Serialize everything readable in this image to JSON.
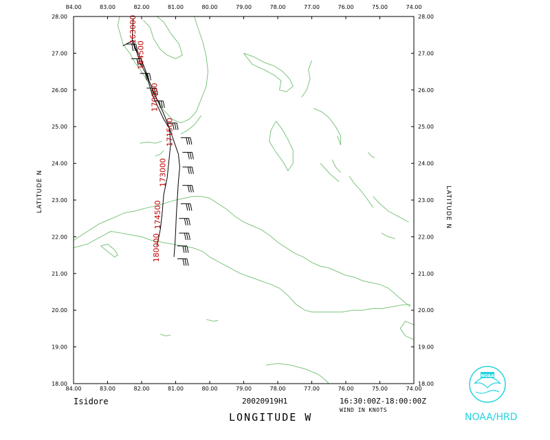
{
  "map": {
    "lon_range": [
      84.0,
      74.0
    ],
    "lat_range": [
      18.0,
      28.0
    ],
    "lon_ticks": [
      "84.00",
      "83.00",
      "82.00",
      "81.00",
      "80.00",
      "79.00",
      "78.00",
      "77.00",
      "76.00",
      "75.00",
      "74.00"
    ],
    "lat_ticks": [
      "18.00",
      "19.00",
      "20.00",
      "21.00",
      "22.00",
      "23.00",
      "24.00",
      "25.00",
      "26.00",
      "27.00",
      "28.00"
    ],
    "left_axis_label": "LATITUDE N",
    "right_axis_label": "LATITUDE N",
    "x_axis_label": "LONGITUDE W",
    "storm_name": "Isidore",
    "flight_id": "20020919H1",
    "time_range": "16:30:00Z-18:00:00Z",
    "wind_units": "WIND IN KNOTS",
    "logo_text": "NOAA/HRD",
    "logo_inner": "NOAA",
    "coast_color": "#7cc47c",
    "track_color": "#000000",
    "label_color": "#c00000",
    "logo_color": "#22d3e0"
  },
  "track_labels": [
    {
      "text": "163000",
      "lon": 82.18,
      "lat": 27.65
    },
    {
      "text": "164500",
      "lon": 81.95,
      "lat": 26.95
    },
    {
      "text": "170000",
      "lon": 81.55,
      "lat": 25.8
    },
    {
      "text": "171500",
      "lon": 81.1,
      "lat": 24.85
    },
    {
      "text": "173000",
      "lon": 81.3,
      "lat": 23.75
    },
    {
      "text": "174500",
      "lon": 81.45,
      "lat": 22.6
    },
    {
      "text": "180000",
      "lon": 81.5,
      "lat": 21.7
    }
  ],
  "flight_track": [
    [
      82.25,
      27.95
    ],
    [
      82.28,
      27.3
    ],
    [
      82.1,
      27.0
    ],
    [
      81.92,
      26.62
    ],
    [
      81.78,
      26.25
    ],
    [
      81.65,
      25.95
    ],
    [
      81.5,
      25.65
    ],
    [
      81.35,
      25.35
    ],
    [
      81.2,
      25.0
    ],
    [
      81.05,
      24.6
    ],
    [
      80.92,
      24.25
    ],
    [
      80.88,
      23.9
    ],
    [
      80.92,
      23.5
    ],
    [
      80.95,
      23.05
    ],
    [
      80.98,
      22.6
    ],
    [
      81.0,
      22.15
    ],
    [
      81.02,
      21.8
    ],
    [
      81.05,
      21.45
    ]
  ],
  "return_track": [
    [
      82.55,
      27.2
    ],
    [
      82.25,
      27.35
    ],
    [
      82.05,
      26.75
    ],
    [
      81.85,
      26.4
    ],
    [
      81.7,
      25.9
    ],
    [
      81.55,
      25.6
    ],
    [
      81.35,
      25.2
    ],
    [
      81.18,
      24.95
    ],
    [
      81.15,
      24.5
    ],
    [
      81.2,
      24.05
    ],
    [
      81.25,
      23.6
    ],
    [
      81.35,
      23.15
    ],
    [
      81.4,
      22.6
    ],
    [
      81.45,
      22.2
    ],
    [
      81.55,
      21.75
    ]
  ],
  "wind_barbs": [
    {
      "lon": 82.45,
      "lat": 27.25
    },
    {
      "lon": 82.3,
      "lat": 26.85
    },
    {
      "lon": 82.05,
      "lat": 26.45
    },
    {
      "lon": 81.85,
      "lat": 26.05
    },
    {
      "lon": 81.65,
      "lat": 25.7
    },
    {
      "lon": 81.25,
      "lat": 25.1
    },
    {
      "lon": 80.85,
      "lat": 24.7
    },
    {
      "lon": 80.8,
      "lat": 24.3
    },
    {
      "lon": 80.8,
      "lat": 23.9
    },
    {
      "lon": 80.8,
      "lat": 23.4
    },
    {
      "lon": 80.85,
      "lat": 22.9
    },
    {
      "lon": 80.9,
      "lat": 22.5
    },
    {
      "lon": 80.9,
      "lat": 22.1
    },
    {
      "lon": 80.95,
      "lat": 21.75
    },
    {
      "lon": 80.95,
      "lat": 21.4
    }
  ],
  "coastlines": [
    [
      [
        82.65,
        28.0
      ],
      [
        82.7,
        27.75
      ],
      [
        82.62,
        27.5
      ],
      [
        82.55,
        27.25
      ],
      [
        82.35,
        27.0
      ],
      [
        82.2,
        26.75
      ],
      [
        82.0,
        26.5
      ],
      [
        81.8,
        26.2
      ],
      [
        81.7,
        25.95
      ],
      [
        81.55,
        25.75
      ],
      [
        81.35,
        25.45
      ],
      [
        81.1,
        25.2
      ],
      [
        80.85,
        25.1
      ],
      [
        80.6,
        25.2
      ],
      [
        80.4,
        25.4
      ],
      [
        80.25,
        25.75
      ],
      [
        80.1,
        26.1
      ],
      [
        80.05,
        26.5
      ],
      [
        80.1,
        26.9
      ],
      [
        80.2,
        27.3
      ],
      [
        80.35,
        27.7
      ],
      [
        80.45,
        28.0
      ]
    ],
    [
      [
        81.95,
        27.9
      ],
      [
        81.75,
        27.7
      ],
      [
        81.65,
        27.4
      ],
      [
        81.45,
        27.1
      ],
      [
        81.25,
        26.95
      ],
      [
        81.0,
        26.85
      ],
      [
        80.8,
        26.95
      ],
      [
        80.9,
        27.25
      ],
      [
        81.15,
        27.55
      ],
      [
        81.35,
        27.85
      ],
      [
        81.55,
        28.0
      ]
    ],
    [
      [
        80.85,
        24.8
      ],
      [
        80.65,
        24.9
      ],
      [
        80.45,
        25.05
      ],
      [
        80.25,
        25.3
      ]
    ],
    [
      [
        81.4,
        24.6
      ],
      [
        81.6,
        24.55
      ],
      [
        81.8,
        24.58
      ],
      [
        82.05,
        24.55
      ]
    ],
    [
      [
        81.6,
        24.2
      ],
      [
        81.45,
        24.25
      ],
      [
        81.35,
        24.35
      ]
    ],
    [
      [
        84.0,
        21.9
      ],
      [
        83.75,
        22.05
      ],
      [
        83.5,
        22.2
      ],
      [
        83.25,
        22.35
      ],
      [
        83.0,
        22.45
      ],
      [
        82.75,
        22.55
      ],
      [
        82.5,
        22.65
      ],
      [
        82.2,
        22.7
      ],
      [
        82.0,
        22.75
      ],
      [
        81.8,
        22.8
      ],
      [
        81.5,
        22.85
      ],
      [
        81.2,
        22.95
      ],
      [
        81.0,
        23.0
      ],
      [
        80.75,
        23.05
      ],
      [
        80.5,
        23.1
      ],
      [
        80.25,
        23.1
      ],
      [
        80.0,
        23.05
      ],
      [
        79.75,
        22.9
      ],
      [
        79.5,
        22.75
      ],
      [
        79.25,
        22.55
      ],
      [
        79.0,
        22.4
      ],
      [
        78.75,
        22.3
      ],
      [
        78.5,
        22.2
      ],
      [
        78.25,
        22.05
      ],
      [
        78.0,
        21.85
      ],
      [
        77.75,
        21.7
      ],
      [
        77.5,
        21.55
      ],
      [
        77.25,
        21.45
      ],
      [
        77.0,
        21.3
      ],
      [
        76.75,
        21.2
      ],
      [
        76.5,
        21.15
      ],
      [
        76.25,
        21.05
      ],
      [
        76.0,
        20.95
      ],
      [
        75.75,
        20.9
      ],
      [
        75.5,
        20.8
      ],
      [
        75.25,
        20.75
      ],
      [
        75.0,
        20.7
      ],
      [
        74.75,
        20.6
      ],
      [
        74.5,
        20.4
      ],
      [
        74.25,
        20.2
      ],
      [
        74.1,
        20.1
      ]
    ],
    [
      [
        84.0,
        21.7
      ],
      [
        83.6,
        21.8
      ],
      [
        83.2,
        22.0
      ],
      [
        82.9,
        22.15
      ],
      [
        82.6,
        22.1
      ],
      [
        82.3,
        22.05
      ],
      [
        82.0,
        22.0
      ],
      [
        81.7,
        21.9
      ],
      [
        81.4,
        21.85
      ],
      [
        81.1,
        21.8
      ],
      [
        80.8,
        21.75
      ],
      [
        80.5,
        21.7
      ],
      [
        80.2,
        21.6
      ],
      [
        80.0,
        21.45
      ],
      [
        79.7,
        21.3
      ],
      [
        79.4,
        21.15
      ],
      [
        79.1,
        21.0
      ],
      [
        78.8,
        20.9
      ],
      [
        78.5,
        20.8
      ],
      [
        78.2,
        20.7
      ],
      [
        77.95,
        20.6
      ],
      [
        77.7,
        20.4
      ],
      [
        77.45,
        20.15
      ],
      [
        77.2,
        20.0
      ],
      [
        77.0,
        19.95
      ],
      [
        76.7,
        19.95
      ],
      [
        76.4,
        19.95
      ],
      [
        76.1,
        19.95
      ],
      [
        75.8,
        20.0
      ],
      [
        75.5,
        20.0
      ],
      [
        75.2,
        20.05
      ],
      [
        74.9,
        20.05
      ],
      [
        74.6,
        20.1
      ],
      [
        74.3,
        20.15
      ],
      [
        74.1,
        20.15
      ]
    ],
    [
      [
        83.2,
        21.75
      ],
      [
        83.0,
        21.6
      ],
      [
        82.8,
        21.45
      ],
      [
        82.7,
        21.5
      ],
      [
        82.8,
        21.65
      ],
      [
        83.0,
        21.8
      ],
      [
        83.2,
        21.75
      ]
    ],
    [
      [
        80.1,
        19.75
      ],
      [
        79.9,
        19.7
      ],
      [
        79.75,
        19.72
      ]
    ],
    [
      [
        81.45,
        19.35
      ],
      [
        81.3,
        19.3
      ],
      [
        81.15,
        19.32
      ]
    ],
    [
      [
        78.35,
        18.5
      ],
      [
        78.0,
        18.55
      ],
      [
        77.6,
        18.5
      ],
      [
        77.2,
        18.4
      ],
      [
        76.8,
        18.25
      ],
      [
        76.6,
        18.1
      ],
      [
        76.5,
        18.0
      ]
    ],
    [
      [
        74.0,
        19.6
      ],
      [
        74.25,
        19.7
      ],
      [
        74.4,
        19.5
      ],
      [
        74.25,
        19.3
      ],
      [
        74.0,
        19.2
      ]
    ],
    [
      [
        79.0,
        27.0
      ],
      [
        78.7,
        26.9
      ],
      [
        78.4,
        26.75
      ],
      [
        78.1,
        26.65
      ],
      [
        77.85,
        26.5
      ],
      [
        77.65,
        26.3
      ],
      [
        77.55,
        26.1
      ],
      [
        77.75,
        25.95
      ],
      [
        77.95,
        26.0
      ],
      [
        77.9,
        26.25
      ],
      [
        78.1,
        26.4
      ],
      [
        78.4,
        26.55
      ],
      [
        78.75,
        26.7
      ],
      [
        79.0,
        27.0
      ]
    ],
    [
      [
        77.0,
        26.8
      ],
      [
        77.1,
        26.55
      ],
      [
        77.05,
        26.3
      ],
      [
        77.15,
        26.0
      ],
      [
        77.3,
        25.8
      ]
    ],
    [
      [
        78.05,
        25.15
      ],
      [
        78.2,
        24.9
      ],
      [
        78.25,
        24.6
      ],
      [
        78.05,
        24.3
      ],
      [
        77.85,
        24.05
      ],
      [
        77.7,
        23.8
      ],
      [
        77.55,
        24.0
      ],
      [
        77.55,
        24.35
      ],
      [
        77.7,
        24.65
      ],
      [
        77.85,
        24.9
      ],
      [
        78.05,
        25.15
      ]
    ],
    [
      [
        76.95,
        25.5
      ],
      [
        76.7,
        25.4
      ],
      [
        76.5,
        25.25
      ],
      [
        76.3,
        25.0
      ],
      [
        76.15,
        24.75
      ],
      [
        76.15,
        24.5
      ],
      [
        76.25,
        24.75
      ]
    ],
    [
      [
        76.75,
        24.0
      ],
      [
        76.6,
        23.85
      ],
      [
        76.45,
        23.7
      ],
      [
        76.2,
        23.5
      ]
    ],
    [
      [
        75.9,
        23.65
      ],
      [
        75.75,
        23.45
      ],
      [
        75.55,
        23.25
      ],
      [
        75.35,
        23.0
      ],
      [
        75.2,
        22.8
      ]
    ],
    [
      [
        75.2,
        23.1
      ],
      [
        75.0,
        22.9
      ],
      [
        74.75,
        22.7
      ],
      [
        74.45,
        22.55
      ],
      [
        74.15,
        22.4
      ]
    ],
    [
      [
        74.95,
        22.1
      ],
      [
        74.75,
        22.0
      ],
      [
        74.55,
        21.95
      ]
    ],
    [
      [
        76.4,
        24.1
      ],
      [
        76.3,
        23.9
      ],
      [
        76.15,
        23.75
      ]
    ],
    [
      [
        75.35,
        24.3
      ],
      [
        75.25,
        24.2
      ],
      [
        75.15,
        24.15
      ]
    ]
  ]
}
